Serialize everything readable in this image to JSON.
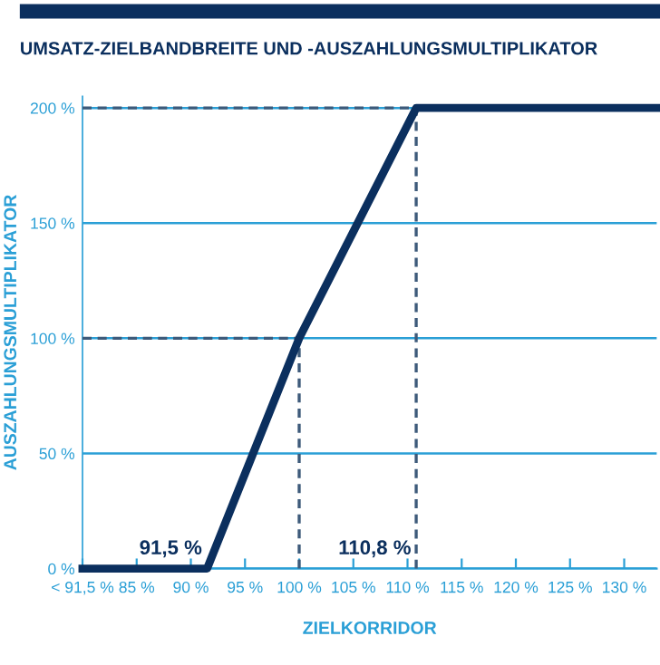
{
  "chart_data": {
    "type": "line",
    "title": "UMSATZ-ZIELBANDBREITE UND -AUSZAHLUNGSMULTIPLIKATOR",
    "xlabel": "ZIELKORRIDOR",
    "ylabel": "AUSZAHLUNGSMULTIPLIKATOR",
    "series": [
      {
        "color": "#0b2f5e",
        "line_style": "solid",
        "x": [
          80,
          91.5,
          100,
          110.8,
          133
        ],
        "values": [
          0,
          0,
          100,
          200,
          200
        ]
      },
      {
        "color": "#3d5a7a",
        "line_style": "dashed",
        "x": [
          80,
          110.8,
          110.8
        ],
        "values": [
          200,
          200,
          0
        ]
      },
      {
        "color": "#3d5a7a",
        "line_style": "dashed",
        "x": [
          80,
          100,
          100
        ],
        "values": [
          100,
          100,
          0
        ]
      }
    ],
    "xlim": [
      80,
      133
    ],
    "ylim": [
      0,
      205
    ],
    "xticks": [
      {
        "value": 80,
        "label": "< 91,5 %"
      },
      {
        "value": 85,
        "label": "85 %"
      },
      {
        "value": 90,
        "label": "90 %"
      },
      {
        "value": 95,
        "label": "95 %"
      },
      {
        "value": 100,
        "label": "100 %"
      },
      {
        "value": 105,
        "label": "105 %"
      },
      {
        "value": 110,
        "label": "110 %"
      },
      {
        "value": 115,
        "label": "115 %"
      },
      {
        "value": 120,
        "label": "120 %"
      },
      {
        "value": 125,
        "label": "125 %"
      },
      {
        "value": 130,
        "label": "130 %"
      }
    ],
    "yticks": [
      {
        "value": 0,
        "label": "0 %"
      },
      {
        "value": 50,
        "label": "50 %"
      },
      {
        "value": 100,
        "label": "100 %"
      },
      {
        "value": 150,
        "label": "150 %"
      },
      {
        "value": 200,
        "label": "200 %"
      }
    ],
    "grid": "y",
    "annotations": [
      {
        "text": "91,5 %",
        "x": 91.5,
        "y": 0
      },
      {
        "text": "110,8 %",
        "x": 110.8,
        "y": 0
      }
    ]
  }
}
